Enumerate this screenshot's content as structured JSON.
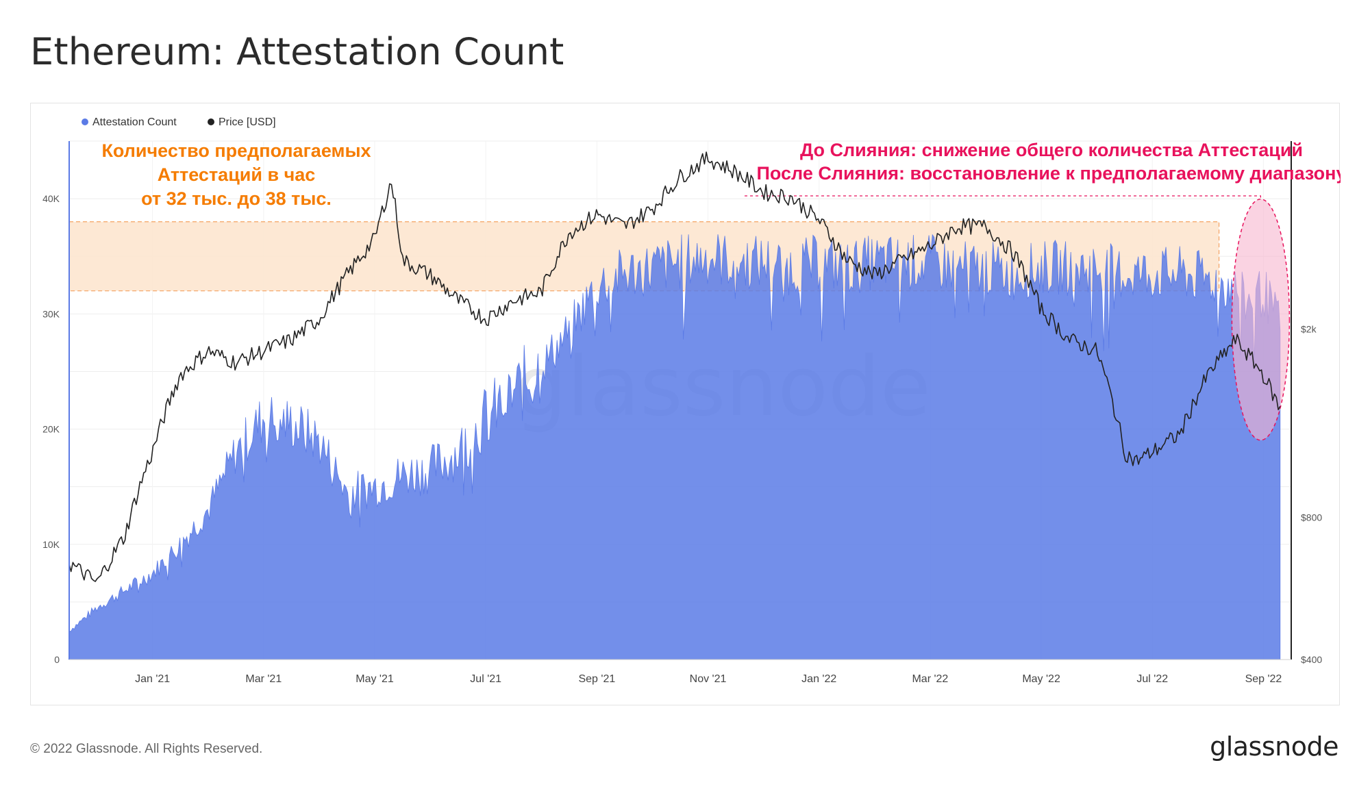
{
  "title": "Ethereum: Attestation Count",
  "footer": {
    "copyright": "© 2022 Glassnode. All Rights Reserved.",
    "logo": "glassnode"
  },
  "watermark": "glassnode",
  "colors": {
    "attestation": "#5b7be6",
    "price": "#222222",
    "band_fill": "#fde4cc",
    "band_stroke": "#f4a261",
    "orange_text": "#f57c00",
    "pink_text": "#e8125c",
    "ellipse_fill": "#f7b6cf",
    "ellipse_stroke": "#e8125c"
  },
  "chart_data": {
    "type": "line",
    "title": "Ethereum: Attestation Count",
    "legend": [
      {
        "name": "Attestation Count",
        "color": "#5b7be6"
      },
      {
        "name": "Price [USD]",
        "color": "#222222"
      }
    ],
    "legend_position": "top-left",
    "x_tick_labels": [
      "Jan '21",
      "Mar '21",
      "May '21",
      "Jul '21",
      "Sep '21",
      "Nov '21",
      "Jan '22",
      "Mar '22",
      "May '22",
      "Jul '22",
      "Sep '22"
    ],
    "x_tick_months": [
      1,
      3,
      5,
      7,
      9,
      11,
      13,
      15,
      17,
      19,
      21
    ],
    "x_range_months": [
      -0.5,
      21.5
    ],
    "y_left": {
      "label": "Attestation Count",
      "range": [
        0,
        45000
      ],
      "ticks": [
        0,
        10000,
        20000,
        30000,
        40000
      ],
      "tick_labels": [
        "0",
        "10K",
        "20K",
        "30K",
        "40K"
      ]
    },
    "y_right": {
      "label": "Price [USD]",
      "scale": "log",
      "range": [
        400,
        5000
      ],
      "ticks": [
        400,
        800,
        2000
      ],
      "tick_labels": [
        "$400",
        "$800",
        "$2k"
      ]
    },
    "series": [
      {
        "name": "Attestation Count",
        "type": "area",
        "x_months": [
          -0.5,
          0,
          0.5,
          1,
          1.5,
          2,
          2.5,
          3,
          3.5,
          4,
          4.5,
          5,
          5.5,
          6,
          6.5,
          7,
          7.5,
          8,
          8.5,
          9,
          9.5,
          10,
          10.5,
          11,
          11.5,
          12,
          12.5,
          13,
          13.5,
          14,
          14.5,
          15,
          15.5,
          16,
          16.5,
          17,
          17.5,
          18,
          18.5,
          19,
          19.5,
          20,
          20.4,
          20.7,
          21,
          21.3
        ],
        "values": [
          2500,
          4500,
          6000,
          7500,
          10000,
          13000,
          18000,
          21000,
          20500,
          19000,
          14500,
          15000,
          16000,
          16500,
          18000,
          21000,
          23000,
          25500,
          28500,
          32500,
          33500,
          34000,
          34500,
          35000,
          34500,
          34500,
          34000,
          34500,
          34000,
          34500,
          34500,
          34500,
          34000,
          34000,
          33500,
          34000,
          34000,
          34000,
          33500,
          33500,
          33500,
          33000,
          32500,
          31000,
          32000,
          29000
        ]
      },
      {
        "name": "Price [USD]",
        "type": "line",
        "x_months": [
          -0.5,
          0,
          0.5,
          1,
          1.5,
          2,
          2.5,
          3,
          3.5,
          4,
          4.5,
          5,
          5.3,
          5.5,
          6,
          6.5,
          7,
          7.5,
          8,
          8.5,
          9,
          9.5,
          10,
          10.5,
          11,
          11.5,
          12,
          12.5,
          13,
          13.5,
          14,
          14.5,
          15,
          15.5,
          16,
          16.5,
          17,
          17.5,
          18,
          18.5,
          18.7,
          19,
          19.5,
          20,
          20.5,
          21,
          21.3
        ],
        "values": [
          640,
          580,
          730,
          1100,
          1600,
          1800,
          1700,
          1800,
          1900,
          2100,
          2600,
          3100,
          4100,
          2800,
          2600,
          2300,
          2100,
          2300,
          2400,
          3200,
          3500,
          3300,
          3600,
          4200,
          4600,
          4300,
          3900,
          3800,
          3400,
          2800,
          2600,
          2800,
          3000,
          3300,
          3300,
          2900,
          2200,
          1900,
          1800,
          1100,
          1050,
          1100,
          1200,
          1600,
          1900,
          1600,
          1350
        ]
      }
    ],
    "annotations": [
      {
        "id": "band",
        "type": "band",
        "y_range": [
          32000,
          38000
        ],
        "x_range_months": [
          -0.5,
          20.2
        ]
      },
      {
        "id": "left_note",
        "lines": [
          "Количество предполагаемых",
          "Аттестаций в час",
          "от 32 тыс. до 38 тыс."
        ]
      },
      {
        "id": "right_note",
        "lines": [
          "До Слияния: снижение общего количества Аттестаций",
          "После Слияния: восстановление к предполагаемому диапазону"
        ]
      },
      {
        "id": "merge_ellipse",
        "type": "ellipse",
        "x_center_month": 20.95,
        "y_center": 29500
      }
    ]
  }
}
